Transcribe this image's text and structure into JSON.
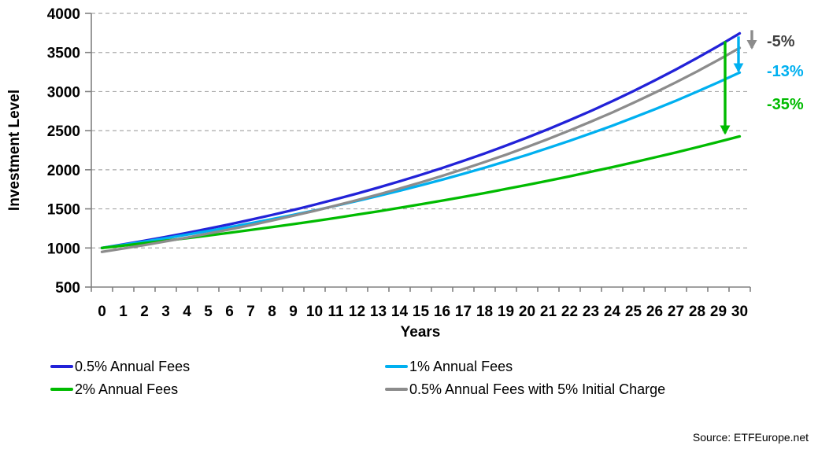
{
  "chart_data": {
    "type": "line",
    "xlabel": "Years",
    "ylabel": "Investment Level",
    "x": [
      0,
      1,
      2,
      3,
      4,
      5,
      6,
      7,
      8,
      9,
      10,
      11,
      12,
      13,
      14,
      15,
      16,
      17,
      18,
      19,
      20,
      21,
      22,
      23,
      24,
      25,
      26,
      27,
      28,
      29,
      30
    ],
    "y_ticks": [
      500,
      1000,
      1500,
      2000,
      2500,
      3000,
      3500,
      4000
    ],
    "ylim": [
      500,
      4000
    ],
    "grid": "horizontal-dashed",
    "legend_position": "bottom",
    "series": [
      {
        "name": "0.5% Annual Fees",
        "color": "#2222D8",
        "values": [
          1000,
          1045,
          1092,
          1141,
          1193,
          1246,
          1302,
          1361,
          1422,
          1486,
          1553,
          1623,
          1696,
          1772,
          1852,
          1935,
          2022,
          2113,
          2208,
          2308,
          2412,
          2520,
          2634,
          2752,
          2876,
          3005,
          3141,
          3282,
          3430,
          3584,
          3745
        ]
      },
      {
        "name": "1% Annual Fees",
        "color": "#00B0F0",
        "values": [
          1000,
          1040,
          1082,
          1125,
          1170,
          1217,
          1265,
          1316,
          1369,
          1423,
          1480,
          1539,
          1601,
          1665,
          1732,
          1801,
          1873,
          1948,
          2026,
          2107,
          2191,
          2279,
          2370,
          2465,
          2563,
          2666,
          2772,
          2883,
          2999,
          3119,
          3243
        ]
      },
      {
        "name": "2% Annual Fees",
        "color": "#00BB00",
        "values": [
          1000,
          1030,
          1061,
          1093,
          1126,
          1159,
          1194,
          1230,
          1267,
          1305,
          1344,
          1384,
          1426,
          1469,
          1513,
          1558,
          1605,
          1653,
          1702,
          1754,
          1806,
          1860,
          1916,
          1974,
          2033,
          2094,
          2157,
          2221,
          2288,
          2357,
          2427
        ]
      },
      {
        "name": "0.5% Annual Fees with 5% Initial Charge",
        "color": "#8C8C8C",
        "values": [
          950,
          993,
          1037,
          1084,
          1133,
          1184,
          1237,
          1293,
          1351,
          1412,
          1475,
          1542,
          1611,
          1684,
          1759,
          1839,
          1921,
          2008,
          2098,
          2192,
          2291,
          2394,
          2502,
          2615,
          2732,
          2855,
          2984,
          3118,
          3258,
          3405,
          3558
        ]
      }
    ],
    "annotations": [
      {
        "label": "-5%",
        "text_color": "#404040",
        "arrow_color": "#8C8C8C",
        "from_value": 3745,
        "to_value": 3558
      },
      {
        "label": "-13%",
        "text_color": "#00B0F0",
        "arrow_color": "#00B0F0",
        "from_value": 3745,
        "to_value": 3243
      },
      {
        "label": "-35%",
        "text_color": "#00BB00",
        "arrow_color": "#00BB00",
        "from_value": 3745,
        "to_value": 2427
      }
    ]
  },
  "source": {
    "label": "Source: ETFEurope.net"
  }
}
